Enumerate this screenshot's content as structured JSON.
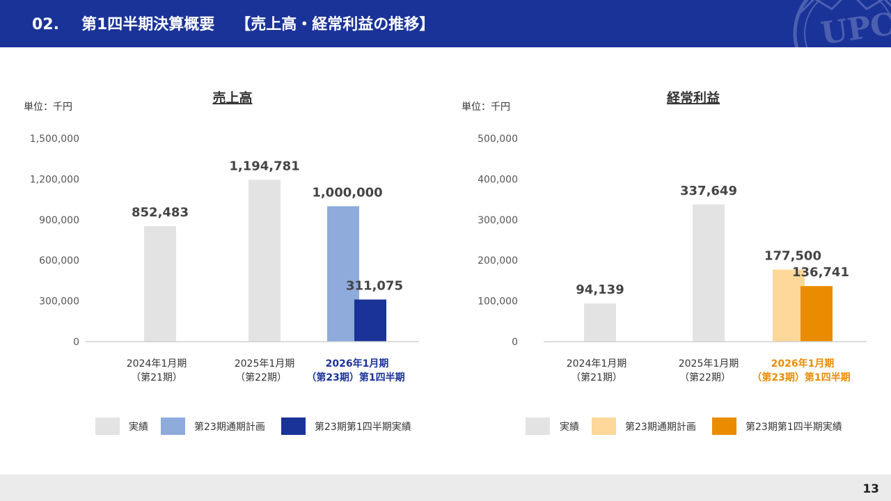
{
  "header": {
    "section": "02.",
    "title": "第1四半期決算概要",
    "subtitle": "【売上高・経常利益の推移】",
    "logo_text": "UPC"
  },
  "colors": {
    "header_bg": "#1a3399",
    "actual_gray": "#e3e3e3",
    "sales_plan": "#8eabdc",
    "sales_q1": "#1a3399",
    "profit_plan": "#fdd89a",
    "profit_q1": "#ea8c00"
  },
  "chart_data": [
    {
      "type": "bar",
      "title": "売上高",
      "unit_label": "単位：千円",
      "ylim": [
        0,
        1500000
      ],
      "y_ticks": [
        "0",
        "300,000",
        "600,000",
        "900,000",
        "1,200,000",
        "1,500,000"
      ],
      "categories": [
        {
          "line1": "2024年1月期",
          "line2": "（第21期）",
          "highlight": false
        },
        {
          "line1": "2025年1月期",
          "line2": "（第22期）",
          "highlight": false
        },
        {
          "line1": "2026年1月期",
          "line2": "（第23期）第1四半期",
          "highlight": true
        }
      ],
      "series": [
        {
          "name": "実績",
          "color": "#e3e3e3",
          "values": [
            852483,
            1194781,
            null
          ],
          "labels": [
            "852,483",
            "1,194,781",
            null
          ]
        },
        {
          "name": "第23期通期計画",
          "color": "#8eabdc",
          "values": [
            null,
            null,
            1000000
          ],
          "labels": [
            null,
            null,
            "1,000,000"
          ]
        },
        {
          "name": "第23期第1四半期実績",
          "color": "#1a3399",
          "values": [
            null,
            null,
            311075
          ],
          "labels": [
            null,
            null,
            "311,075"
          ]
        }
      ],
      "grid": false,
      "legend_position": "bottom"
    },
    {
      "type": "bar",
      "title": "経常利益",
      "unit_label": "単位：千円",
      "ylim": [
        0,
        500000
      ],
      "y_ticks": [
        "0",
        "100,000",
        "200,000",
        "300,000",
        "400,000",
        "500,000"
      ],
      "categories": [
        {
          "line1": "2024年1月期",
          "line2": "（第21期）",
          "highlight": false
        },
        {
          "line1": "2025年1月期",
          "line2": "（第22期）",
          "highlight": false
        },
        {
          "line1": "2026年1月期",
          "line2": "（第23期）第1四半期",
          "highlight": true
        }
      ],
      "series": [
        {
          "name": "実績",
          "color": "#e3e3e3",
          "values": [
            94139,
            337649,
            null
          ],
          "labels": [
            "94,139",
            "337,649",
            null
          ]
        },
        {
          "name": "第23期通期計画",
          "color": "#fdd89a",
          "values": [
            null,
            null,
            177500
          ],
          "labels": [
            null,
            null,
            "177,500"
          ]
        },
        {
          "name": "第23期第1四半期実績",
          "color": "#ea8c00",
          "values": [
            null,
            null,
            136741
          ],
          "labels": [
            null,
            null,
            "136,741"
          ]
        }
      ],
      "grid": false,
      "legend_position": "bottom"
    }
  ],
  "footer": {
    "page": "13"
  }
}
